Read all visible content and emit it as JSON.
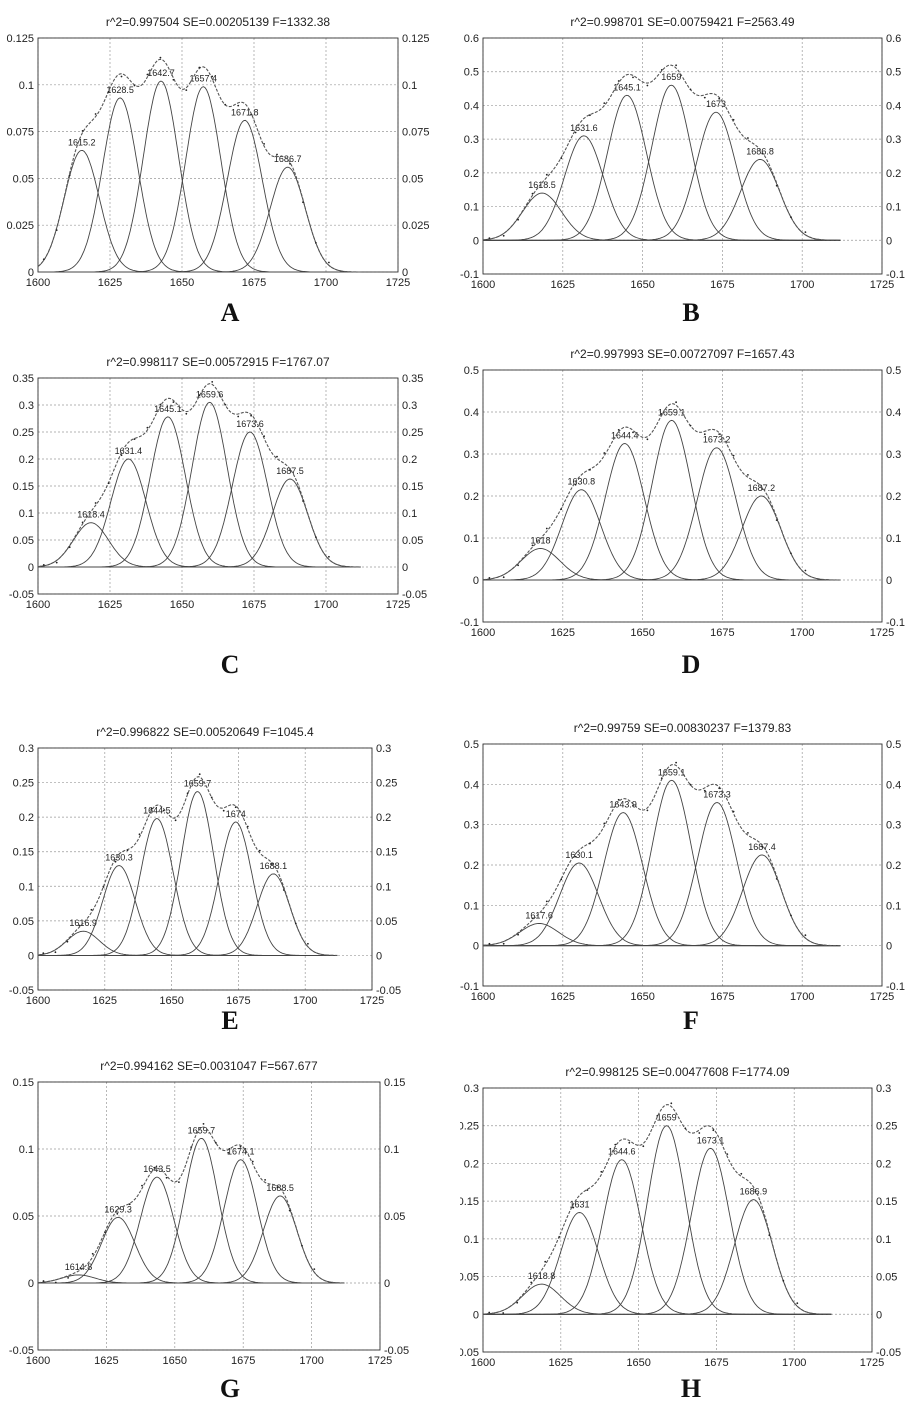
{
  "chart_data": [
    {
      "type": "line",
      "panel_label": "A",
      "title": "r^2=0.997504  SE=0.00205139  F=1332.38",
      "xlim": [
        1600,
        1725
      ],
      "x_ticks": [
        "1600",
        "1625",
        "1650",
        "1675",
        "1700",
        "1725"
      ],
      "ylim": [
        0,
        0.125
      ],
      "y_ticks": [
        "0",
        "0.025",
        "0.05",
        "0.075",
        "0.1",
        "0.125"
      ],
      "grid": true,
      "envelope_color": "#555555",
      "peaks": [
        {
          "label": "1615.2",
          "center": 1615.2,
          "height": 0.065
        },
        {
          "label": "1628.5",
          "center": 1628.5,
          "height": 0.093
        },
        {
          "label": "1642.7",
          "center": 1642.7,
          "height": 0.102
        },
        {
          "label": "1657.4",
          "center": 1657.4,
          "height": 0.099
        },
        {
          "label": "1671.8",
          "center": 1671.8,
          "height": 0.081
        },
        {
          "label": "1686.7",
          "center": 1686.7,
          "height": 0.056
        }
      ]
    },
    {
      "type": "line",
      "panel_label": "B",
      "title": "r^2=0.998701  SE=0.00759421  F=2563.49",
      "xlim": [
        1600,
        1725
      ],
      "x_ticks": [
        "1600",
        "1625",
        "1650",
        "1675",
        "1700",
        "1725"
      ],
      "ylim": [
        -0.1,
        0.6
      ],
      "y_ticks": [
        "-0.1",
        "0",
        "0.1",
        "0.2",
        "0.3",
        "0.4",
        "0.5",
        "0.6"
      ],
      "grid": true,
      "envelope_color": "#555555",
      "peaks": [
        {
          "label": "1618.5",
          "center": 1618.5,
          "height": 0.14
        },
        {
          "label": "1631.6",
          "center": 1631.6,
          "height": 0.31
        },
        {
          "label": "1645.1",
          "center": 1645.1,
          "height": 0.43
        },
        {
          "label": "1659",
          "center": 1659.0,
          "height": 0.46
        },
        {
          "label": "1673",
          "center": 1673.0,
          "height": 0.38
        },
        {
          "label": "1686.8",
          "center": 1686.8,
          "height": 0.24
        }
      ]
    },
    {
      "type": "line",
      "panel_label": "C",
      "title": "r^2=0.998117  SE=0.00572915  F=1767.07",
      "xlim": [
        1600,
        1725
      ],
      "x_ticks": [
        "1600",
        "1625",
        "1650",
        "1675",
        "1700",
        "1725"
      ],
      "ylim": [
        -0.05,
        0.35
      ],
      "y_ticks": [
        "-0.05",
        "0",
        "0.05",
        "0.1",
        "0.15",
        "0.2",
        "0.25",
        "0.3",
        "0.35"
      ],
      "grid": true,
      "envelope_color": "#555555",
      "peaks": [
        {
          "label": "1618.4",
          "center": 1618.4,
          "height": 0.082
        },
        {
          "label": "1631.4",
          "center": 1631.4,
          "height": 0.2
        },
        {
          "label": "1645.1",
          "center": 1645.1,
          "height": 0.278
        },
        {
          "label": "1659.6",
          "center": 1659.6,
          "height": 0.305
        },
        {
          "label": "1673.6",
          "center": 1673.6,
          "height": 0.25
        },
        {
          "label": "1687.5",
          "center": 1687.5,
          "height": 0.163
        }
      ]
    },
    {
      "type": "line",
      "panel_label": "D",
      "title": "r^2=0.997993  SE=0.00727097  F=1657.43",
      "xlim": [
        1600,
        1725
      ],
      "x_ticks": [
        "1600",
        "1625",
        "1650",
        "1675",
        "1700",
        "1725"
      ],
      "ylim": [
        -0.1,
        0.5
      ],
      "y_ticks": [
        "-0.1",
        "0",
        "0.1",
        "0.2",
        "0.3",
        "0.4",
        "0.5"
      ],
      "grid": true,
      "envelope_color": "#555555",
      "peaks": [
        {
          "label": "1618",
          "center": 1618.0,
          "height": 0.075
        },
        {
          "label": "1630.8",
          "center": 1630.8,
          "height": 0.215
        },
        {
          "label": "1644.4",
          "center": 1644.4,
          "height": 0.325
        },
        {
          "label": "1659.1",
          "center": 1659.1,
          "height": 0.38
        },
        {
          "label": "1673.2",
          "center": 1673.2,
          "height": 0.315
        },
        {
          "label": "1687.2",
          "center": 1687.2,
          "height": 0.2
        }
      ]
    },
    {
      "type": "line",
      "panel_label": "E",
      "title": "r^2=0.996822  SE=0.00520649  F=1045.4",
      "xlim": [
        1600,
        1725
      ],
      "x_ticks": [
        "1600",
        "1625",
        "1650",
        "1675",
        "1700",
        "1725"
      ],
      "ylim": [
        -0.05,
        0.3
      ],
      "y_ticks": [
        "-0.05",
        "0",
        "0.05",
        "0.1",
        "0.15",
        "0.2",
        "0.25",
        "0.3"
      ],
      "grid": true,
      "envelope_color": "#555555",
      "peaks": [
        {
          "label": "1616.9",
          "center": 1616.9,
          "height": 0.035
        },
        {
          "label": "1630.3",
          "center": 1630.3,
          "height": 0.13
        },
        {
          "label": "1644.5",
          "center": 1644.5,
          "height": 0.198
        },
        {
          "label": "1659.7",
          "center": 1659.7,
          "height": 0.237
        },
        {
          "label": "1674",
          "center": 1674.0,
          "height": 0.193
        },
        {
          "label": "1688.1",
          "center": 1688.1,
          "height": 0.118
        }
      ]
    },
    {
      "type": "line",
      "panel_label": "F",
      "title": "r^2=0.99759  SE=0.00830237  F=1379.83",
      "xlim": [
        1600,
        1725
      ],
      "x_ticks": [
        "1600",
        "1625",
        "1650",
        "1675",
        "1700",
        "1725"
      ],
      "ylim": [
        -0.1,
        0.5
      ],
      "y_ticks": [
        "-0.1",
        "0",
        "0.1",
        "0.2",
        "0.3",
        "0.4",
        "0.5"
      ],
      "grid": true,
      "envelope_color": "#555555",
      "peaks": [
        {
          "label": "1617.6",
          "center": 1617.6,
          "height": 0.055
        },
        {
          "label": "1630.1",
          "center": 1630.1,
          "height": 0.205
        },
        {
          "label": "1643.9",
          "center": 1643.9,
          "height": 0.33
        },
        {
          "label": "1659.1",
          "center": 1659.1,
          "height": 0.41
        },
        {
          "label": "1673.3",
          "center": 1673.3,
          "height": 0.355
        },
        {
          "label": "1687.4",
          "center": 1687.4,
          "height": 0.225
        }
      ]
    },
    {
      "type": "line",
      "panel_label": "G",
      "title": "r^2=0.994162  SE=0.0031047  F=567.677",
      "xlim": [
        1600,
        1725
      ],
      "x_ticks": [
        "1600",
        "1625",
        "1650",
        "1675",
        "1700",
        "1725"
      ],
      "ylim": [
        -0.05,
        0.15
      ],
      "y_ticks": [
        "-0.05",
        "0",
        "0.05",
        "0.1",
        "0.15"
      ],
      "grid": true,
      "envelope_color": "#555555",
      "peaks": [
        {
          "label": "1614.8",
          "center": 1614.8,
          "height": 0.006
        },
        {
          "label": "1629.3",
          "center": 1629.3,
          "height": 0.049
        },
        {
          "label": "1643.5",
          "center": 1643.5,
          "height": 0.079
        },
        {
          "label": "1659.7",
          "center": 1659.7,
          "height": 0.108
        },
        {
          "label": "1674.1",
          "center": 1674.1,
          "height": 0.092
        },
        {
          "label": "1688.5",
          "center": 1688.5,
          "height": 0.065
        }
      ]
    },
    {
      "type": "line",
      "panel_label": "H",
      "title": "r^2=0.998125  SE=0.00477608  F=1774.09",
      "xlim": [
        1600,
        1725
      ],
      "x_ticks": [
        "1600",
        "1625",
        "1650",
        "1675",
        "1700",
        "1725"
      ],
      "ylim": [
        -0.05,
        0.3
      ],
      "y_ticks": [
        "-0.05",
        "0",
        "0.05",
        "0.1",
        "0.15",
        "0.2",
        "0.25",
        "0.3"
      ],
      "grid": true,
      "envelope_color": "#555555",
      "peaks": [
        {
          "label": "1618.8",
          "center": 1618.8,
          "height": 0.04
        },
        {
          "label": "1631",
          "center": 1631.0,
          "height": 0.135
        },
        {
          "label": "1644.6",
          "center": 1644.6,
          "height": 0.205
        },
        {
          "label": "1659",
          "center": 1659.0,
          "height": 0.25
        },
        {
          "label": "1673.1",
          "center": 1673.1,
          "height": 0.22
        },
        {
          "label": "1686.9",
          "center": 1686.9,
          "height": 0.152
        }
      ]
    }
  ]
}
